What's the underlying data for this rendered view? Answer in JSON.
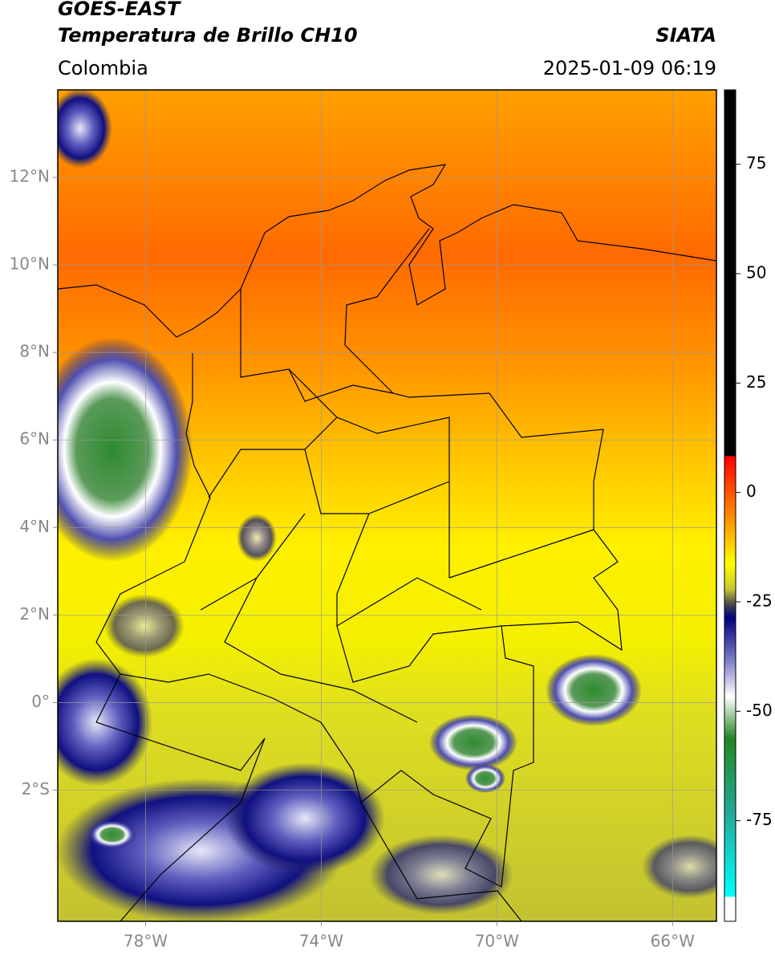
{
  "header": {
    "title": "GOES-EAST",
    "subtitle": "Temperatura de Brillo CH10",
    "source": "SIATA",
    "region": "Colombia",
    "timestamp": "2025-01-09 06:19"
  },
  "map": {
    "xlim": [
      -80,
      -65
    ],
    "ylim": [
      -5,
      14
    ],
    "xticks": [
      {
        "value": -78,
        "label": "78°W"
      },
      {
        "value": -74,
        "label": "74°W"
      },
      {
        "value": -70,
        "label": "70°W"
      },
      {
        "value": -66,
        "label": "66°W"
      }
    ],
    "yticks": [
      {
        "value": 12,
        "label": "12°N"
      },
      {
        "value": 10,
        "label": "10°N"
      },
      {
        "value": 8,
        "label": "8°N"
      },
      {
        "value": 6,
        "label": "6°N"
      },
      {
        "value": 4,
        "label": "4°N"
      },
      {
        "value": 2,
        "label": "2°N"
      },
      {
        "value": 0,
        "label": "0°"
      },
      {
        "value": -2,
        "label": "2°S"
      }
    ],
    "grid": true
  },
  "colorbar": {
    "lim": [
      -98,
      92
    ],
    "ticks": [
      75,
      50,
      25,
      0,
      -25,
      -50,
      -75
    ]
  }
}
